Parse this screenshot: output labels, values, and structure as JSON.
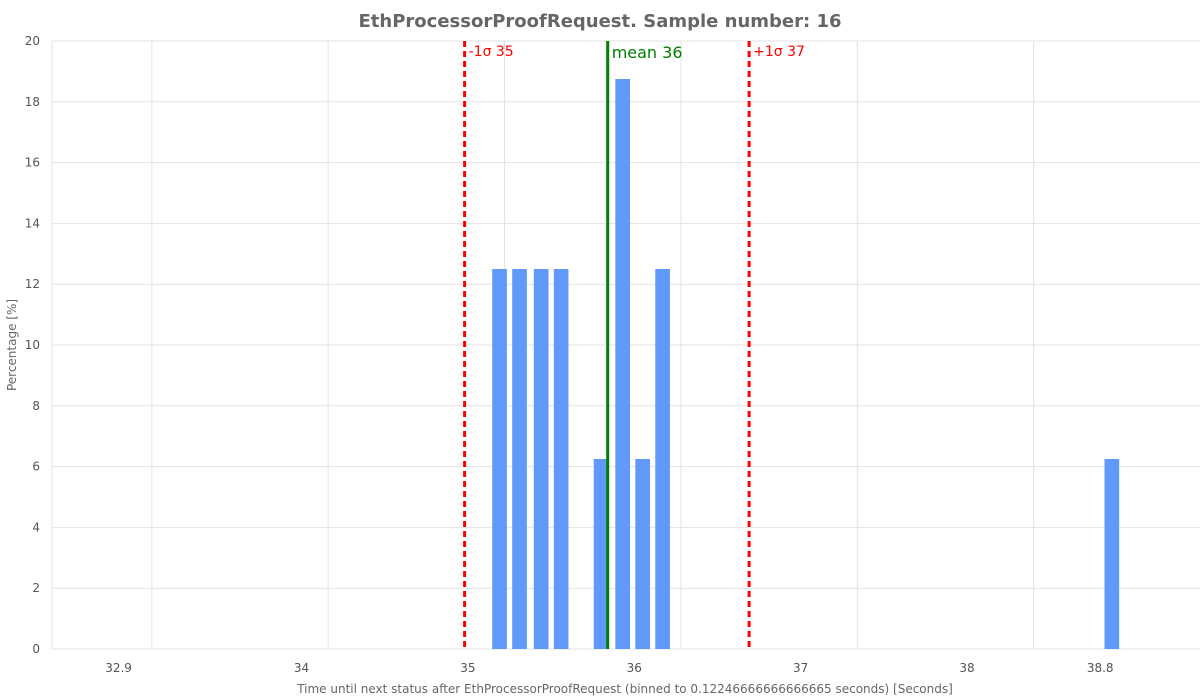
{
  "chart_data": {
    "type": "bar",
    "title": "EthProcessorProofRequest. Sample number: 16",
    "xlabel": "Time until next status after EthProcessorProofRequest (binned to 0.12246666666666665 seconds) [Seconds]",
    "ylabel": "Percentage [%]",
    "xlim": [
      32.5,
      39.4
    ],
    "ylim": [
      0,
      20
    ],
    "x_ticks": [
      {
        "value": 32.9,
        "label": "32.9"
      },
      {
        "value": 34,
        "label": "34"
      },
      {
        "value": 35,
        "label": "35"
      },
      {
        "value": 36,
        "label": "36"
      },
      {
        "value": 37,
        "label": "37"
      },
      {
        "value": 38,
        "label": "38"
      },
      {
        "value": 38.8,
        "label": "38.8"
      }
    ],
    "y_ticks": [
      0,
      2,
      4,
      6,
      8,
      10,
      12,
      14,
      16,
      18,
      20
    ],
    "x_gridlines": [
      33.1,
      34.16,
      35.22,
      36.28,
      37.34,
      38.4,
      39.46
    ],
    "bin_width": 0.1224666666666666,
    "bars": [
      {
        "x": 35.19,
        "value": 12.5
      },
      {
        "x": 35.31,
        "value": 12.5
      },
      {
        "x": 35.44,
        "value": 12.5
      },
      {
        "x": 35.56,
        "value": 12.5
      },
      {
        "x": 35.8,
        "value": 6.25
      },
      {
        "x": 35.93,
        "value": 18.75
      },
      {
        "x": 36.05,
        "value": 6.25
      },
      {
        "x": 36.17,
        "value": 12.5
      },
      {
        "x": 38.87,
        "value": 6.25
      }
    ],
    "reference_lines": [
      {
        "x": 34.98,
        "label": "-1σ 35",
        "color": "#ff0000",
        "style": "dashed"
      },
      {
        "x": 35.84,
        "label": "mean 36",
        "color": "#008000",
        "style": "solid"
      },
      {
        "x": 36.69,
        "label": "+1σ 37",
        "color": "#ff0000",
        "style": "dashed"
      }
    ],
    "bar_color": "#6199fb",
    "grid": true
  }
}
